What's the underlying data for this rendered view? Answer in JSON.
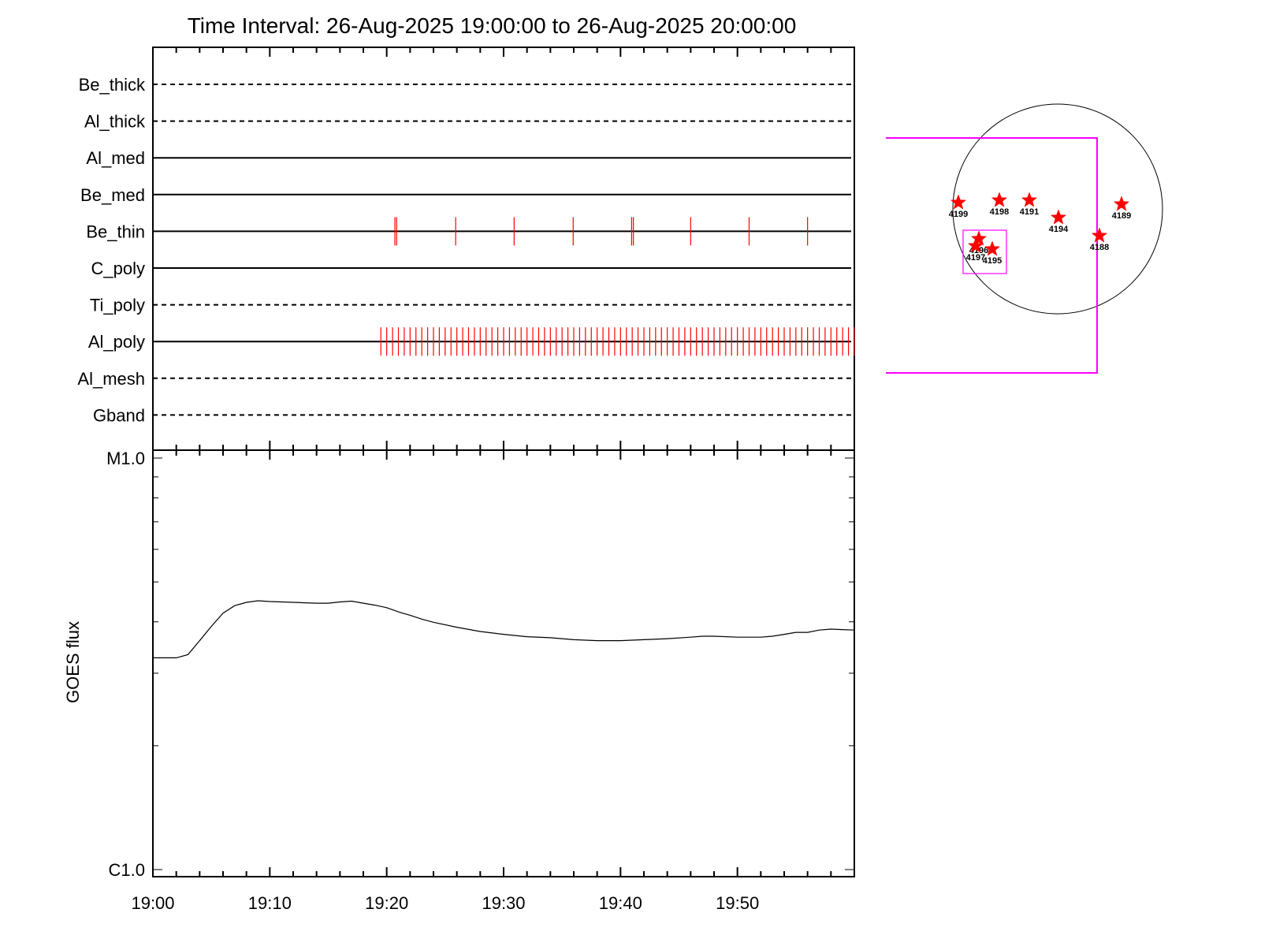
{
  "chart_data": [
    {
      "type": "timeline",
      "title": "Time Interval: 26-Aug-2025 19:00:00 to 26-Aug-2025 20:00:00",
      "time_range": [
        "19:00",
        "20:00"
      ],
      "x_tick_labels": [
        "19:00",
        "19:10",
        "19:20",
        "19:30",
        "19:40",
        "19:50"
      ],
      "channels": [
        {
          "name": "Be_thick",
          "line": "dashed",
          "events": []
        },
        {
          "name": "Al_thick",
          "line": "dashed",
          "events": []
        },
        {
          "name": "Al_med",
          "line": "solid",
          "events": []
        },
        {
          "name": "Be_med",
          "line": "solid",
          "events": []
        },
        {
          "name": "Be_thin",
          "line": "solid",
          "events": [
            20.7,
            20.85,
            25.9,
            30.9,
            35.95,
            40.95,
            41.1,
            46.0,
            51.0,
            56.0
          ]
        },
        {
          "name": "C_poly",
          "line": "solid",
          "events": []
        },
        {
          "name": "Ti_poly",
          "line": "dashed",
          "events": []
        },
        {
          "name": "Al_poly",
          "line": "solid",
          "events": {
            "start_min": 19.5,
            "end_min": 60.0,
            "cadence_min": 0.5
          }
        },
        {
          "name": "Al_mesh",
          "line": "dashed",
          "events": []
        },
        {
          "name": "Gband",
          "line": "dashed",
          "events": []
        }
      ],
      "event_color": "#ff0000"
    },
    {
      "type": "line",
      "ylabel": "GOES flux",
      "y_scale": "log",
      "y_tick_labels": [
        "C1.0",
        "M1.0"
      ],
      "ylim": [
        1e-06,
        1e-05
      ],
      "x_tick_labels": [
        "19:00",
        "19:10",
        "19:20",
        "19:30",
        "19:40",
        "19:50"
      ],
      "series": [
        {
          "x_min": [
            0,
            2,
            3,
            4,
            5,
            6,
            7,
            8,
            9,
            10,
            11,
            12,
            13,
            14,
            15,
            16,
            17,
            18,
            19,
            20,
            21,
            22,
            23,
            24,
            26,
            28,
            30,
            32,
            34,
            36,
            38,
            40,
            42,
            44,
            46,
            47,
            48,
            50,
            52,
            53,
            54,
            55,
            56,
            57,
            58,
            59,
            60
          ],
          "flux": [
            3.27e-06,
            3.27e-06,
            3.33e-06,
            3.6e-06,
            3.9e-06,
            4.2e-06,
            4.38e-06,
            4.46e-06,
            4.5e-06,
            4.48e-06,
            4.47e-06,
            4.46e-06,
            4.45e-06,
            4.44e-06,
            4.44e-06,
            4.47e-06,
            4.49e-06,
            4.44e-06,
            4.39e-06,
            4.33e-06,
            4.23e-06,
            4.15e-06,
            4.06e-06,
            3.99e-06,
            3.88e-06,
            3.79e-06,
            3.73e-06,
            3.68e-06,
            3.66e-06,
            3.62e-06,
            3.6e-06,
            3.6e-06,
            3.62e-06,
            3.64e-06,
            3.67e-06,
            3.69e-06,
            3.69e-06,
            3.67e-06,
            3.67e-06,
            3.69e-06,
            3.73e-06,
            3.77e-06,
            3.77e-06,
            3.82e-06,
            3.84e-06,
            3.83e-06,
            3.82e-06
          ]
        }
      ]
    }
  ],
  "solar_map": {
    "active_regions": [
      {
        "id": "4199"
      },
      {
        "id": "4198"
      },
      {
        "id": "4191"
      },
      {
        "id": "4194"
      },
      {
        "id": "4189"
      },
      {
        "id": "4188"
      },
      {
        "id": "4196"
      },
      {
        "id": "4197"
      },
      {
        "id": "4195"
      }
    ],
    "colors": {
      "field_of_view": "#ff00ff",
      "disk": "#000000",
      "region_marker": "#ff0000"
    }
  }
}
